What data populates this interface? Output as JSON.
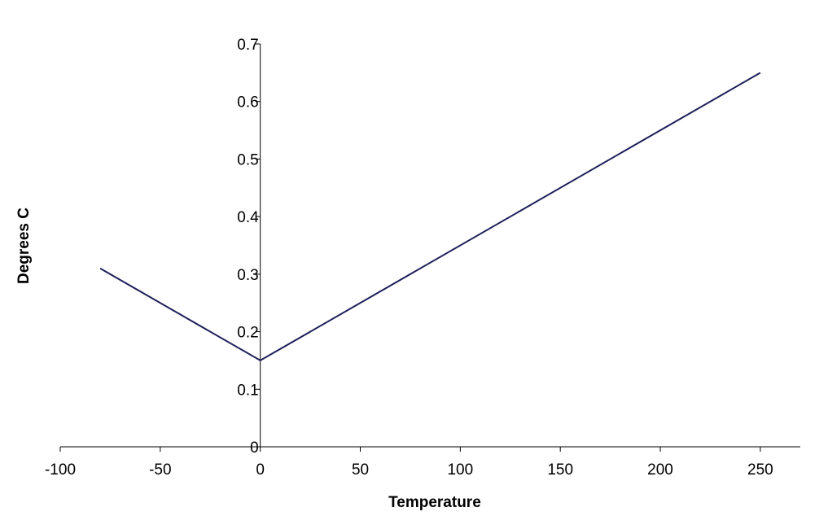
{
  "chart_data": {
    "type": "line",
    "xlabel": "Temperature",
    "ylabel": "Degrees C",
    "xlim": [
      -100,
      270
    ],
    "ylim": [
      0,
      0.7
    ],
    "x_ticks": [
      -100,
      -50,
      0,
      50,
      100,
      150,
      200,
      250
    ],
    "y_ticks": [
      0,
      0.1,
      0.2,
      0.3,
      0.4,
      0.5,
      0.6,
      0.7
    ],
    "grid": false,
    "legend": "none",
    "series": [
      {
        "color": "#1f1f5c",
        "x": [
          -80,
          0,
          250
        ],
        "y": [
          0.31,
          0.15,
          0.65
        ]
      }
    ]
  }
}
